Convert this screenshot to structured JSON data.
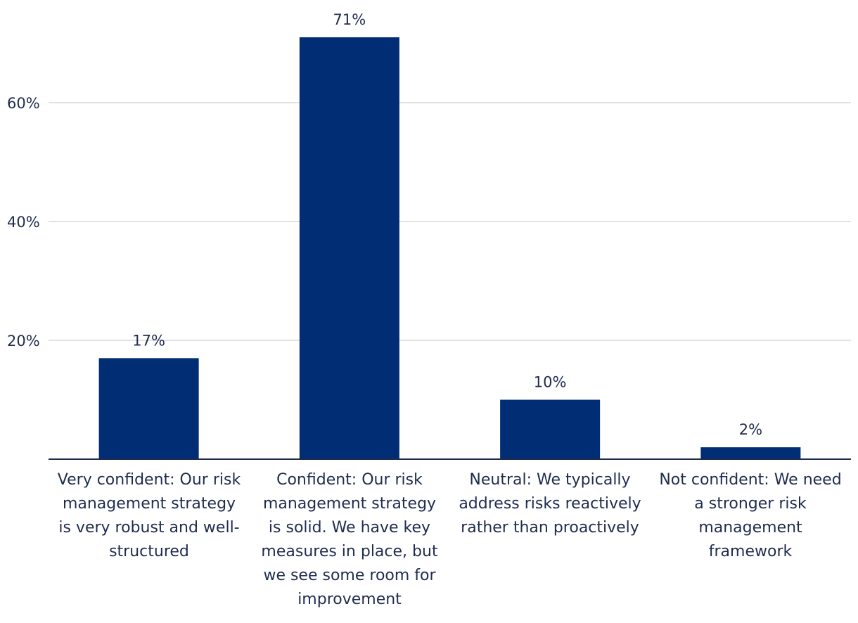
{
  "chart_data": {
    "type": "bar",
    "title": "",
    "xlabel": "",
    "ylabel": "",
    "categories": [
      "Very confident: Our risk management strategy is very robust and well-structured",
      "Confident: Our risk management strategy is solid. We have key measures in place, but we see some room for improvement",
      "Neutral: We typically address risks reactively rather than proactively",
      "Not confident: We need a stronger risk management framework"
    ],
    "values": [
      17,
      71,
      10,
      2
    ],
    "value_labels": [
      "17%",
      "71%",
      "10%",
      "2%"
    ],
    "yticks": [
      20,
      40,
      60
    ],
    "ytick_labels": [
      "20%",
      "40%",
      "60%"
    ],
    "ylim": [
      0,
      75
    ],
    "grid": true,
    "legend": "none",
    "colors": {
      "bar": "#002d74",
      "grid": "#d9d9d9",
      "axis": "#1f2c4e",
      "text": "#1f2c4e"
    }
  }
}
